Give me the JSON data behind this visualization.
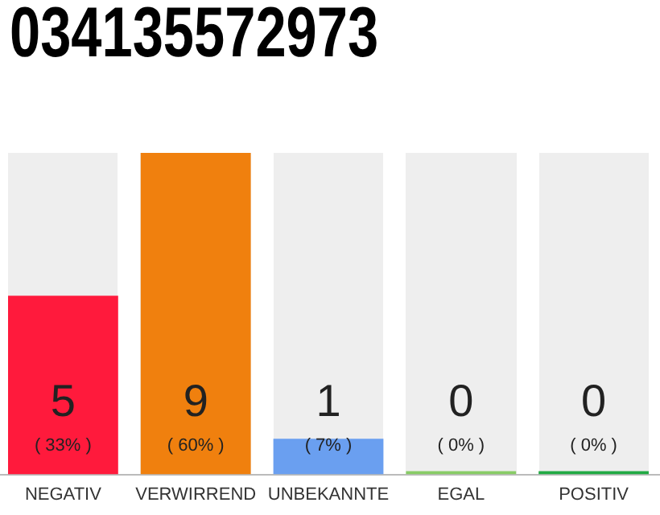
{
  "chart_data": {
    "type": "bar",
    "title": "034135572973",
    "categories": [
      "NEGATIV",
      "VERWIRREND",
      "UNBEKANNTE",
      "EGAL",
      "POSITIV"
    ],
    "values": [
      5,
      9,
      1,
      0,
      0
    ],
    "colors": [
      "#ff1a3c",
      "#f0800e",
      "#6a9ff0",
      "#88cc66",
      "#22aa44"
    ],
    "value_labels": [
      "5\n( 33% )",
      "9\n( 60% )",
      "1\n( 7% )",
      "0\n( 0% )",
      "0\n( 0% )"
    ],
    "grid": false,
    "legend": false
  }
}
